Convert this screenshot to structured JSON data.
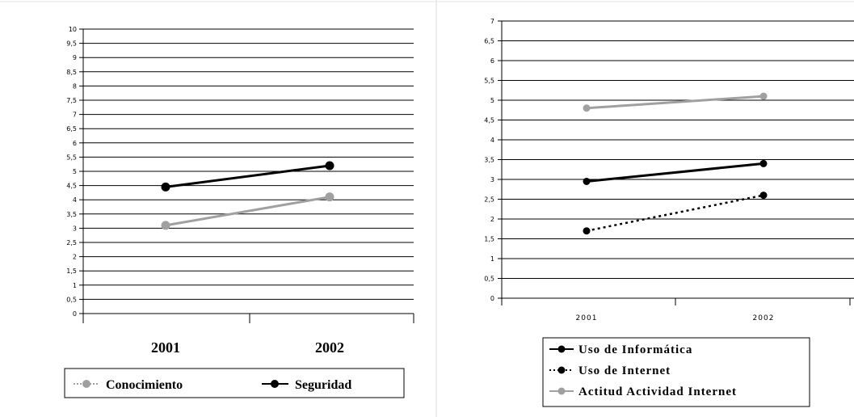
{
  "chart_data": [
    {
      "type": "line",
      "title": "",
      "xlabel": "",
      "ylabel": "",
      "categories": [
        "2001",
        "2002"
      ],
      "ylim": [
        0,
        10
      ],
      "ytick_labels": [
        "0",
        "0,5",
        "1",
        "1,5",
        "2",
        "2,5",
        "3",
        "3,5",
        "4",
        "4,5",
        "5",
        "5,5",
        "6",
        "6,5",
        "7",
        "7,5",
        "8",
        "8,5",
        "9",
        "9,5",
        "10"
      ],
      "grid": true,
      "legend_position": "bottom",
      "series": [
        {
          "name": "Conocimiento",
          "values": [
            3.1,
            4.1
          ],
          "color": "#a0a0a0",
          "style": "solid",
          "legend_style": "dotted"
        },
        {
          "name": "Seguridad",
          "values": [
            4.45,
            5.2
          ],
          "color": "#000000",
          "style": "solid",
          "legend_style": "solid"
        }
      ]
    },
    {
      "type": "line",
      "title": "",
      "xlabel": "",
      "ylabel": "",
      "categories": [
        "2001",
        "2002"
      ],
      "ylim": [
        0,
        7
      ],
      "ytick_labels": [
        "0",
        "0,5",
        "1",
        "1,5",
        "2",
        "2,5",
        "3",
        "3,5",
        "4",
        "4,5",
        "5",
        "5,5",
        "6",
        "6,5",
        "7"
      ],
      "grid": true,
      "legend_position": "bottom",
      "series": [
        {
          "name": "Uso de Informática",
          "values": [
            2.95,
            3.4
          ],
          "color": "#000000",
          "style": "solid",
          "legend_style": "solid"
        },
        {
          "name": "Uso de Internet",
          "values": [
            1.7,
            2.6
          ],
          "color": "#000000",
          "style": "dotted",
          "legend_style": "dotted"
        },
        {
          "name": "Actitud Actividad Internet",
          "values": [
            4.8,
            5.1
          ],
          "color": "#a0a0a0",
          "style": "solid",
          "legend_style": "solid"
        }
      ]
    }
  ]
}
